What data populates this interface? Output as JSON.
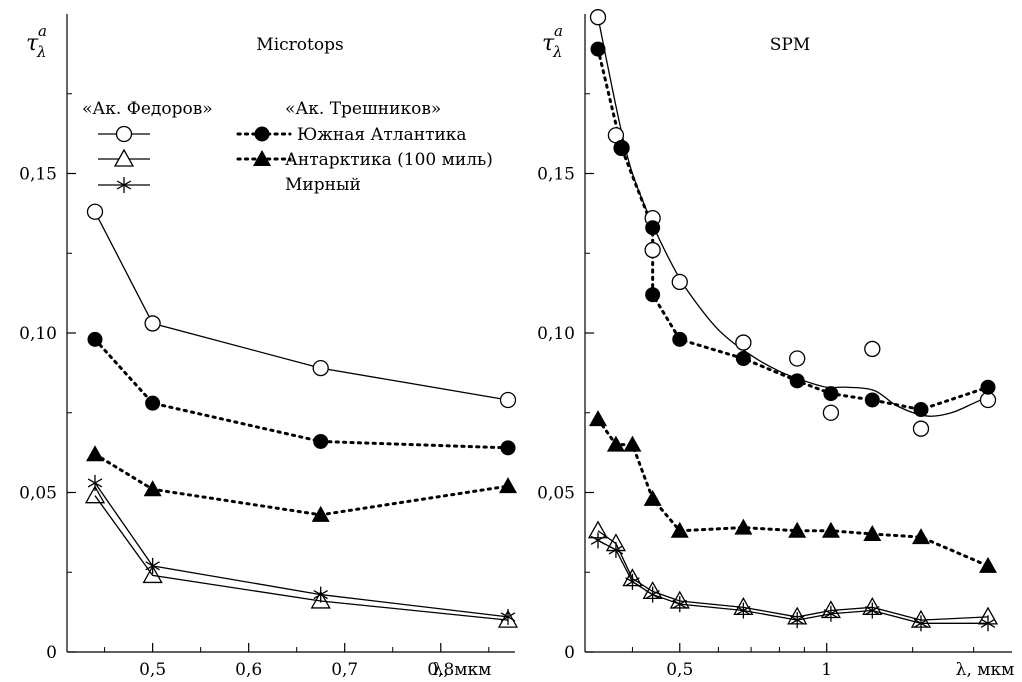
{
  "chart_data": [
    {
      "type": "line",
      "title": "Microtops",
      "ylabel": {
        "main": "τ",
        "sub": "λ",
        "sup": "a"
      },
      "xlabel": "λ, мкм",
      "x_scale": "linear",
      "xlim": [
        0.4,
        0.9
      ],
      "ylim": [
        0,
        0.2
      ],
      "x_ticks": [
        0.5,
        0.6,
        0.7,
        0.8
      ],
      "x_tick_labels": [
        "0,5",
        "0,6",
        "0,7",
        "0,8"
      ],
      "y_ticks": [
        0,
        0.05,
        0.1,
        0.15
      ],
      "y_tick_labels": [
        "0",
        "0,05",
        "0,10",
        "0,15"
      ],
      "legend": {
        "group_headers": [
          "«Ак. Федоров»",
          "«Ак. Трешников»"
        ],
        "entries": [
          "Южная Атлантика",
          "Антарктика (100 миль)",
          "Мирный"
        ]
      },
      "series": [
        {
          "ship": "Ак. Федоров",
          "region": "Южная Атлантика",
          "marker": "open-circle",
          "line": "solid",
          "x": [
            0.44,
            0.5,
            0.675,
            0.87
          ],
          "y": [
            0.138,
            0.103,
            0.089,
            0.079
          ]
        },
        {
          "ship": "Ак. Трешников",
          "region": "Южная Атлантика",
          "marker": "filled-circle",
          "line": "dotted",
          "x": [
            0.44,
            0.5,
            0.675,
            0.87
          ],
          "y": [
            0.098,
            0.078,
            0.066,
            0.064
          ]
        },
        {
          "ship": "Ак. Трешников",
          "region": "Антарктика (100 миль)",
          "marker": "filled-triangle",
          "line": "dotted",
          "x": [
            0.44,
            0.5,
            0.675,
            0.87
          ],
          "y": [
            0.062,
            0.051,
            0.043,
            0.052
          ]
        },
        {
          "ship": "Ак. Федоров",
          "region": "Антарктика (100 миль)",
          "marker": "open-triangle",
          "line": "solid",
          "x": [
            0.44,
            0.5,
            0.675,
            0.87
          ],
          "y": [
            0.049,
            0.024,
            0.016,
            0.01
          ]
        },
        {
          "ship": "Ак. Федоров",
          "region": "Мирный",
          "marker": "asterisk",
          "line": "solid",
          "x": [
            0.44,
            0.5,
            0.675,
            0.87
          ],
          "y": [
            0.053,
            0.027,
            0.018,
            0.011
          ]
        }
      ]
    },
    {
      "type": "line",
      "title": "SPM",
      "ylabel": {
        "main": "τ",
        "sub": "λ",
        "sup": "a"
      },
      "xlabel": "λ, мкм",
      "x_scale": "log",
      "xlim": [
        0.31,
        2.7
      ],
      "ylim": [
        0,
        0.2
      ],
      "x_ticks": [
        0.5,
        1
      ],
      "x_tick_labels": [
        "0,5",
        "1"
      ],
      "x_minor_ticks": [
        0.4,
        0.6,
        0.7,
        0.8,
        0.9,
        1.5,
        2
      ],
      "y_ticks": [
        0,
        0.05,
        0.1,
        0.15
      ],
      "y_tick_labels": [
        "0",
        "0,05",
        "0,10",
        "0,15"
      ],
      "series": [
        {
          "ship": "Ак. Федоров",
          "region": "Южная Атлантика",
          "marker": "open-circle",
          "line": "none",
          "x": [
            0.34,
            0.37,
            0.38,
            0.44,
            0.44,
            0.5,
            0.675,
            0.87,
            1.02,
            1.24,
            1.56,
            2.14
          ],
          "y": [
            0.199,
            0.162,
            0.158,
            0.136,
            0.126,
            0.116,
            0.097,
            0.092,
            0.075,
            0.095,
            0.07,
            0.079
          ]
        },
        {
          "ship": "Ак. Трешников",
          "region": "Южная Атлантика",
          "marker": "filled-circle",
          "line": "dotted",
          "x": [
            0.34,
            0.38,
            0.44,
            0.44,
            0.5,
            0.675,
            0.87,
            1.02,
            1.24,
            1.56,
            2.14
          ],
          "y": [
            0.189,
            0.158,
            0.133,
            0.112,
            0.098,
            0.092,
            0.085,
            0.081,
            0.079,
            0.076,
            0.083
          ]
        },
        {
          "ship": "Ак. Трешников",
          "region": "Антарктика (100 миль)",
          "marker": "filled-triangle",
          "line": "dotted",
          "x": [
            0.34,
            0.37,
            0.4,
            0.44,
            0.5,
            0.675,
            0.87,
            1.02,
            1.24,
            1.56,
            2.14
          ],
          "y": [
            0.073,
            0.065,
            0.065,
            0.048,
            0.038,
            0.039,
            0.038,
            0.038,
            0.037,
            0.036,
            0.027
          ]
        },
        {
          "ship": "Ак. Федоров",
          "region": "Антарктика (100 миль)",
          "marker": "open-triangle",
          "line": "solid",
          "x": [
            0.34,
            0.37,
            0.4,
            0.44,
            0.5,
            0.675,
            0.87,
            1.02,
            1.24,
            1.56,
            2.14
          ],
          "y": [
            0.038,
            0.034,
            0.023,
            0.019,
            0.016,
            0.014,
            0.011,
            0.013,
            0.014,
            0.01,
            0.011
          ]
        },
        {
          "ship": "Ак. Федоров",
          "region": "Мирный",
          "marker": "asterisk",
          "line": "solid",
          "x": [
            0.34,
            0.37,
            0.4,
            0.44,
            0.5,
            0.675,
            0.87,
            1.02,
            1.24,
            1.56,
            2.14
          ],
          "y": [
            0.035,
            0.032,
            0.022,
            0.018,
            0.015,
            0.013,
            0.01,
            0.012,
            0.013,
            0.009,
            0.009
          ]
        }
      ],
      "fit_curve": {
        "fits": "Ак. Федоров, Южная Атлантика",
        "line": "solid",
        "x": [
          0.34,
          0.36,
          0.38,
          0.4,
          0.44,
          0.48,
          0.52,
          0.6,
          0.7,
          0.8,
          0.9,
          1.0,
          1.1,
          1.25,
          1.4,
          1.6,
          1.8,
          2.0,
          2.14
        ],
        "y": [
          0.199,
          0.18,
          0.163,
          0.15,
          0.134,
          0.122,
          0.113,
          0.101,
          0.093,
          0.088,
          0.085,
          0.083,
          0.083,
          0.082,
          0.077,
          0.074,
          0.075,
          0.078,
          0.08
        ]
      }
    }
  ]
}
